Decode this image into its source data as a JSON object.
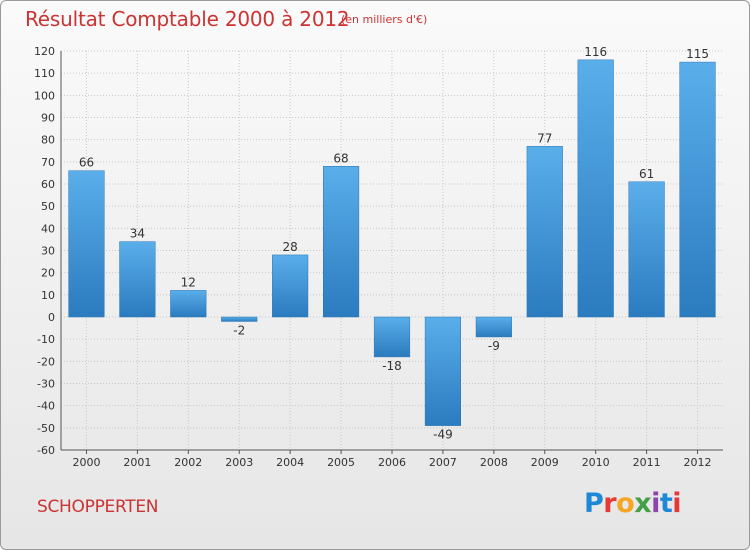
{
  "title": "Résultat Comptable 2000 à 2012",
  "subtitle": "(en milliers d'€)",
  "commune": "SCHOPPERTEN",
  "logo": {
    "letters": [
      "P",
      "r",
      "o",
      "x",
      "i",
      "t",
      "i"
    ],
    "colors": [
      "#1e88d8",
      "#e53935",
      "#f5a623",
      "#43a047",
      "#8e44ad",
      "#1e88d8",
      "#e53935"
    ]
  },
  "chart_data": {
    "type": "bar",
    "categories": [
      "2000",
      "2001",
      "2002",
      "2003",
      "2004",
      "2005",
      "2006",
      "2007",
      "2008",
      "2009",
      "2010",
      "2011",
      "2012"
    ],
    "values": [
      66,
      34,
      12,
      -2,
      28,
      68,
      -18,
      -49,
      -9,
      77,
      116,
      61,
      115
    ],
    "data_labels": [
      "66",
      "34",
      "12",
      "-2",
      "28",
      "68",
      "-18",
      "-49",
      "-9",
      "77",
      "116",
      "61",
      "115"
    ],
    "ylim": [
      -60,
      120
    ],
    "yticks": [
      -60,
      -50,
      -40,
      -30,
      -20,
      -10,
      0,
      10,
      20,
      30,
      40,
      50,
      60,
      70,
      80,
      90,
      100,
      110,
      120
    ],
    "grid": true,
    "bar_color": "#4a9fdc"
  }
}
